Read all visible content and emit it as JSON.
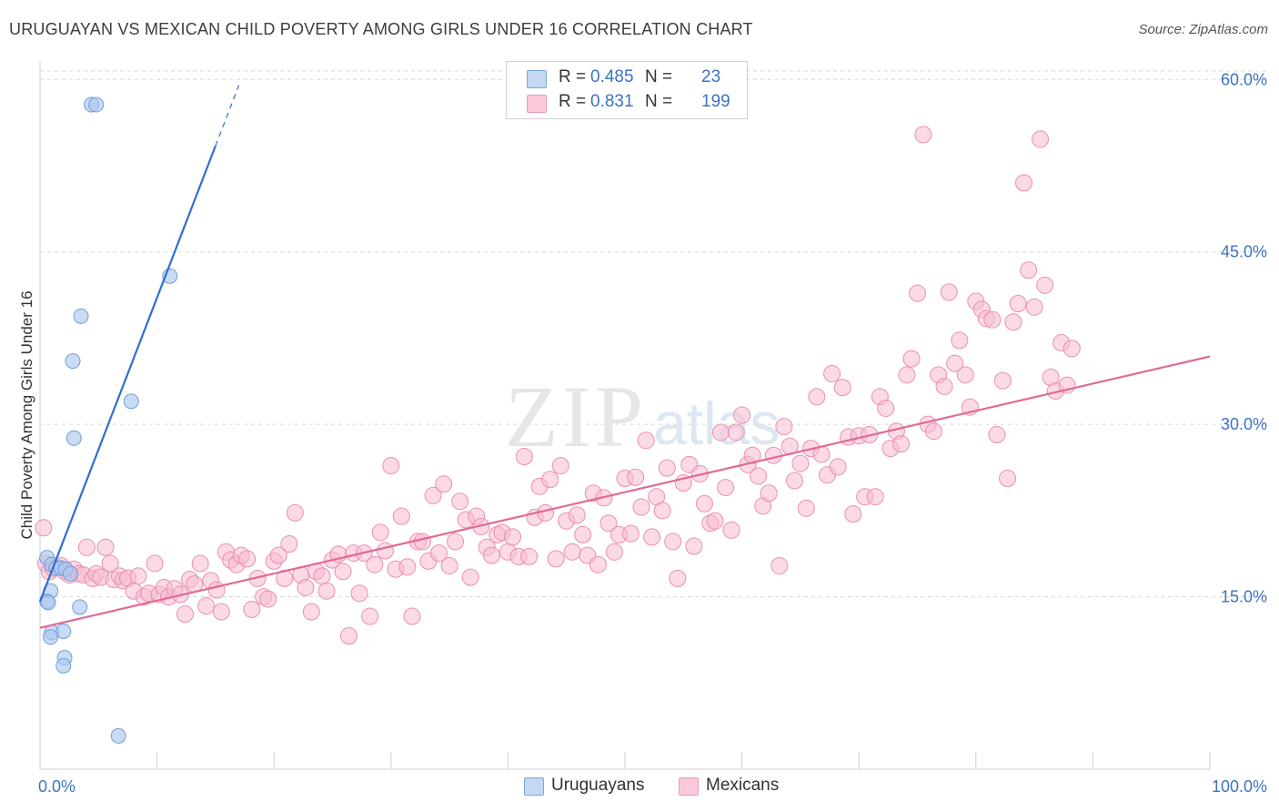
{
  "title": "URUGUAYAN VS MEXICAN CHILD POVERTY AMONG GIRLS UNDER 16 CORRELATION CHART",
  "source": "Source: ZipAtlas.com",
  "watermark": {
    "zip": "ZIP",
    "atlas": "atlas"
  },
  "legend_top": [
    {
      "r_label": "R =",
      "r_value": "0.485",
      "n_label": "N =",
      "n_value": "23"
    },
    {
      "r_label": "R =",
      "r_value": "0.831",
      "n_label": "N =",
      "n_value": "199"
    }
  ],
  "legend_bottom": [
    "Uruguayans",
    "Mexicans"
  ],
  "colors": {
    "uruguayan_fill": "#adc8ee",
    "uruguayan_stroke": "#6f9fd8",
    "uruguayan_line": "#2f6fcf",
    "mexican_fill": "#f7bcd0",
    "mexican_stroke": "#ea8fb0",
    "mexican_line": "#e06a98",
    "axis_text": "#3b73c4",
    "grid": "#d8d8d8"
  },
  "chart_data": {
    "type": "scatter",
    "title": "URUGUAYAN VS MEXICAN CHILD POVERTY AMONG GIRLS UNDER 16 CORRELATION CHART",
    "xlabel": "",
    "ylabel": "Child Poverty Among Girls Under 16",
    "xlim": [
      0,
      100
    ],
    "ylim": [
      0,
      62
    ],
    "x_tick_labels": [
      "0.0%",
      "100.0%"
    ],
    "y_ticks": [
      15,
      30,
      45,
      60
    ],
    "y_tick_labels": [
      "15.0%",
      "30.0%",
      "45.0%",
      "60.0%"
    ],
    "grid": "horizontal dashed",
    "series": [
      {
        "name": "Uruguayans",
        "r": 0.485,
        "n": 23,
        "trend": {
          "x0": 0,
          "y0": 14.6,
          "x1": 17,
          "y1": 59.5,
          "solid_until_x": 15
        },
        "points": [
          [
            4.4,
            57.8
          ],
          [
            4.8,
            57.8
          ],
          [
            11.1,
            42.9
          ],
          [
            3.5,
            39.4
          ],
          [
            2.8,
            35.5
          ],
          [
            7.8,
            32.0
          ],
          [
            2.9,
            28.8
          ],
          [
            0.6,
            18.4
          ],
          [
            1.0,
            17.8
          ],
          [
            1.4,
            17.5
          ],
          [
            1.8,
            17.5
          ],
          [
            2.2,
            17.4
          ],
          [
            2.6,
            17.0
          ],
          [
            0.9,
            15.5
          ],
          [
            0.6,
            14.6
          ],
          [
            0.7,
            14.5
          ],
          [
            3.4,
            14.1
          ],
          [
            1.0,
            11.9
          ],
          [
            0.9,
            11.5
          ],
          [
            2.0,
            12.0
          ],
          [
            2.1,
            9.7
          ],
          [
            2.0,
            9.0
          ],
          [
            6.7,
            2.9
          ]
        ]
      },
      {
        "name": "Mexicans",
        "r": 0.831,
        "n": 199,
        "trend": {
          "x0": 0,
          "y0": 12.3,
          "x1": 100,
          "y1": 35.9
        },
        "points": [
          [
            0.3,
            21.0
          ],
          [
            0.5,
            17.9
          ],
          [
            0.8,
            17.2
          ],
          [
            1.1,
            17.5
          ],
          [
            1.4,
            17.6
          ],
          [
            1.8,
            17.7
          ],
          [
            2.1,
            17.2
          ],
          [
            2.5,
            16.9
          ],
          [
            2.9,
            17.4
          ],
          [
            3.3,
            17.0
          ],
          [
            3.7,
            16.9
          ],
          [
            4.0,
            19.3
          ],
          [
            4.5,
            16.6
          ],
          [
            4.8,
            17.0
          ],
          [
            5.2,
            16.7
          ],
          [
            5.6,
            19.3
          ],
          [
            6.0,
            17.9
          ],
          [
            6.3,
            16.5
          ],
          [
            6.8,
            16.8
          ],
          [
            7.1,
            16.4
          ],
          [
            7.5,
            16.6
          ],
          [
            8.0,
            15.5
          ],
          [
            8.4,
            16.8
          ],
          [
            8.9,
            15.0
          ],
          [
            9.3,
            15.3
          ],
          [
            9.8,
            17.9
          ],
          [
            10.2,
            15.2
          ],
          [
            10.6,
            15.8
          ],
          [
            11.0,
            15.0
          ],
          [
            11.5,
            15.7
          ],
          [
            12.0,
            15.2
          ],
          [
            12.4,
            13.5
          ],
          [
            12.8,
            16.5
          ],
          [
            13.2,
            16.1
          ],
          [
            13.7,
            17.9
          ],
          [
            14.2,
            14.2
          ],
          [
            14.6,
            16.4
          ],
          [
            15.1,
            15.6
          ],
          [
            15.5,
            13.7
          ],
          [
            15.9,
            18.9
          ],
          [
            16.3,
            18.2
          ],
          [
            16.8,
            17.8
          ],
          [
            17.2,
            18.6
          ],
          [
            17.7,
            18.3
          ],
          [
            18.1,
            13.9
          ],
          [
            18.6,
            16.6
          ],
          [
            19.1,
            15.0
          ],
          [
            19.5,
            14.8
          ],
          [
            20.0,
            18.1
          ],
          [
            20.4,
            18.6
          ],
          [
            20.9,
            16.6
          ],
          [
            21.3,
            19.6
          ],
          [
            21.8,
            22.3
          ],
          [
            22.3,
            16.9
          ],
          [
            22.7,
            15.8
          ],
          [
            23.2,
            13.7
          ],
          [
            23.6,
            17.2
          ],
          [
            24.1,
            16.8
          ],
          [
            24.5,
            15.5
          ],
          [
            25.0,
            18.2
          ],
          [
            25.5,
            18.7
          ],
          [
            25.9,
            17.2
          ],
          [
            26.4,
            11.6
          ],
          [
            26.8,
            18.8
          ],
          [
            27.3,
            15.3
          ],
          [
            27.7,
            18.8
          ],
          [
            28.2,
            13.3
          ],
          [
            28.6,
            17.8
          ],
          [
            29.1,
            20.6
          ],
          [
            29.5,
            19.0
          ],
          [
            30.0,
            26.4
          ],
          [
            30.4,
            17.4
          ],
          [
            30.9,
            22.0
          ],
          [
            31.4,
            17.6
          ],
          [
            31.8,
            13.3
          ],
          [
            32.3,
            19.8
          ],
          [
            32.7,
            19.8
          ],
          [
            33.2,
            18.1
          ],
          [
            33.6,
            23.8
          ],
          [
            34.1,
            18.8
          ],
          [
            34.5,
            24.8
          ],
          [
            35.0,
            17.7
          ],
          [
            35.5,
            19.8
          ],
          [
            35.9,
            23.3
          ],
          [
            36.4,
            21.7
          ],
          [
            36.8,
            16.7
          ],
          [
            37.3,
            22.0
          ],
          [
            37.7,
            21.1
          ],
          [
            38.2,
            19.3
          ],
          [
            38.6,
            18.6
          ],
          [
            39.1,
            20.4
          ],
          [
            39.5,
            20.6
          ],
          [
            40.0,
            18.9
          ],
          [
            40.4,
            20.2
          ],
          [
            40.9,
            18.5
          ],
          [
            41.4,
            27.2
          ],
          [
            41.8,
            18.5
          ],
          [
            42.3,
            21.9
          ],
          [
            42.7,
            24.6
          ],
          [
            43.2,
            22.3
          ],
          [
            43.6,
            25.2
          ],
          [
            44.1,
            18.3
          ],
          [
            44.5,
            26.4
          ],
          [
            45.0,
            21.6
          ],
          [
            45.5,
            18.9
          ],
          [
            45.9,
            22.1
          ],
          [
            46.4,
            20.4
          ],
          [
            46.8,
            18.6
          ],
          [
            47.3,
            24.0
          ],
          [
            47.7,
            17.8
          ],
          [
            48.2,
            23.6
          ],
          [
            48.6,
            21.4
          ],
          [
            49.1,
            18.9
          ],
          [
            49.5,
            20.4
          ],
          [
            50.0,
            25.3
          ],
          [
            50.5,
            20.5
          ],
          [
            50.9,
            25.4
          ],
          [
            51.4,
            22.8
          ],
          [
            51.8,
            28.6
          ],
          [
            52.3,
            20.2
          ],
          [
            52.7,
            23.7
          ],
          [
            53.2,
            22.5
          ],
          [
            53.6,
            26.2
          ],
          [
            54.1,
            19.8
          ],
          [
            54.5,
            16.6
          ],
          [
            55.0,
            24.9
          ],
          [
            55.5,
            26.5
          ],
          [
            55.9,
            19.4
          ],
          [
            56.4,
            25.7
          ],
          [
            56.8,
            23.1
          ],
          [
            57.3,
            21.4
          ],
          [
            57.7,
            21.6
          ],
          [
            58.2,
            29.3
          ],
          [
            58.6,
            24.5
          ],
          [
            59.1,
            20.8
          ],
          [
            59.5,
            29.3
          ],
          [
            60.0,
            30.8
          ],
          [
            60.5,
            26.5
          ],
          [
            60.9,
            27.3
          ],
          [
            61.4,
            25.5
          ],
          [
            61.8,
            22.9
          ],
          [
            62.3,
            24.0
          ],
          [
            62.7,
            27.3
          ],
          [
            63.2,
            17.7
          ],
          [
            63.6,
            29.8
          ],
          [
            64.1,
            28.1
          ],
          [
            64.5,
            25.1
          ],
          [
            65.0,
            26.6
          ],
          [
            65.5,
            22.7
          ],
          [
            65.9,
            27.9
          ],
          [
            66.4,
            32.4
          ],
          [
            66.8,
            27.4
          ],
          [
            67.3,
            25.6
          ],
          [
            67.7,
            34.4
          ],
          [
            68.2,
            26.3
          ],
          [
            68.6,
            33.2
          ],
          [
            69.1,
            28.9
          ],
          [
            69.5,
            22.2
          ],
          [
            70.0,
            29.0
          ],
          [
            70.5,
            23.7
          ],
          [
            70.9,
            29.1
          ],
          [
            71.4,
            23.7
          ],
          [
            71.8,
            32.4
          ],
          [
            72.3,
            31.4
          ],
          [
            72.7,
            27.9
          ],
          [
            73.2,
            29.4
          ],
          [
            73.6,
            28.3
          ],
          [
            74.1,
            34.3
          ],
          [
            74.5,
            35.7
          ],
          [
            75.0,
            41.4
          ],
          [
            75.5,
            55.2
          ],
          [
            75.9,
            30.0
          ],
          [
            76.4,
            29.4
          ],
          [
            76.8,
            34.3
          ],
          [
            77.3,
            33.3
          ],
          [
            77.7,
            41.5
          ],
          [
            78.2,
            35.3
          ],
          [
            78.6,
            37.3
          ],
          [
            79.1,
            34.3
          ],
          [
            79.5,
            31.5
          ],
          [
            80.0,
            40.7
          ],
          [
            80.5,
            40.0
          ],
          [
            80.9,
            39.2
          ],
          [
            81.4,
            39.1
          ],
          [
            81.8,
            29.1
          ],
          [
            82.3,
            33.8
          ],
          [
            82.7,
            25.3
          ],
          [
            83.2,
            38.9
          ],
          [
            83.6,
            40.5
          ],
          [
            84.1,
            51.0
          ],
          [
            84.5,
            43.4
          ],
          [
            85.0,
            40.2
          ],
          [
            85.5,
            54.8
          ],
          [
            85.9,
            42.1
          ],
          [
            86.4,
            34.1
          ],
          [
            86.8,
            32.9
          ],
          [
            87.3,
            37.1
          ],
          [
            87.8,
            33.4
          ],
          [
            88.2,
            36.6
          ]
        ]
      }
    ]
  }
}
